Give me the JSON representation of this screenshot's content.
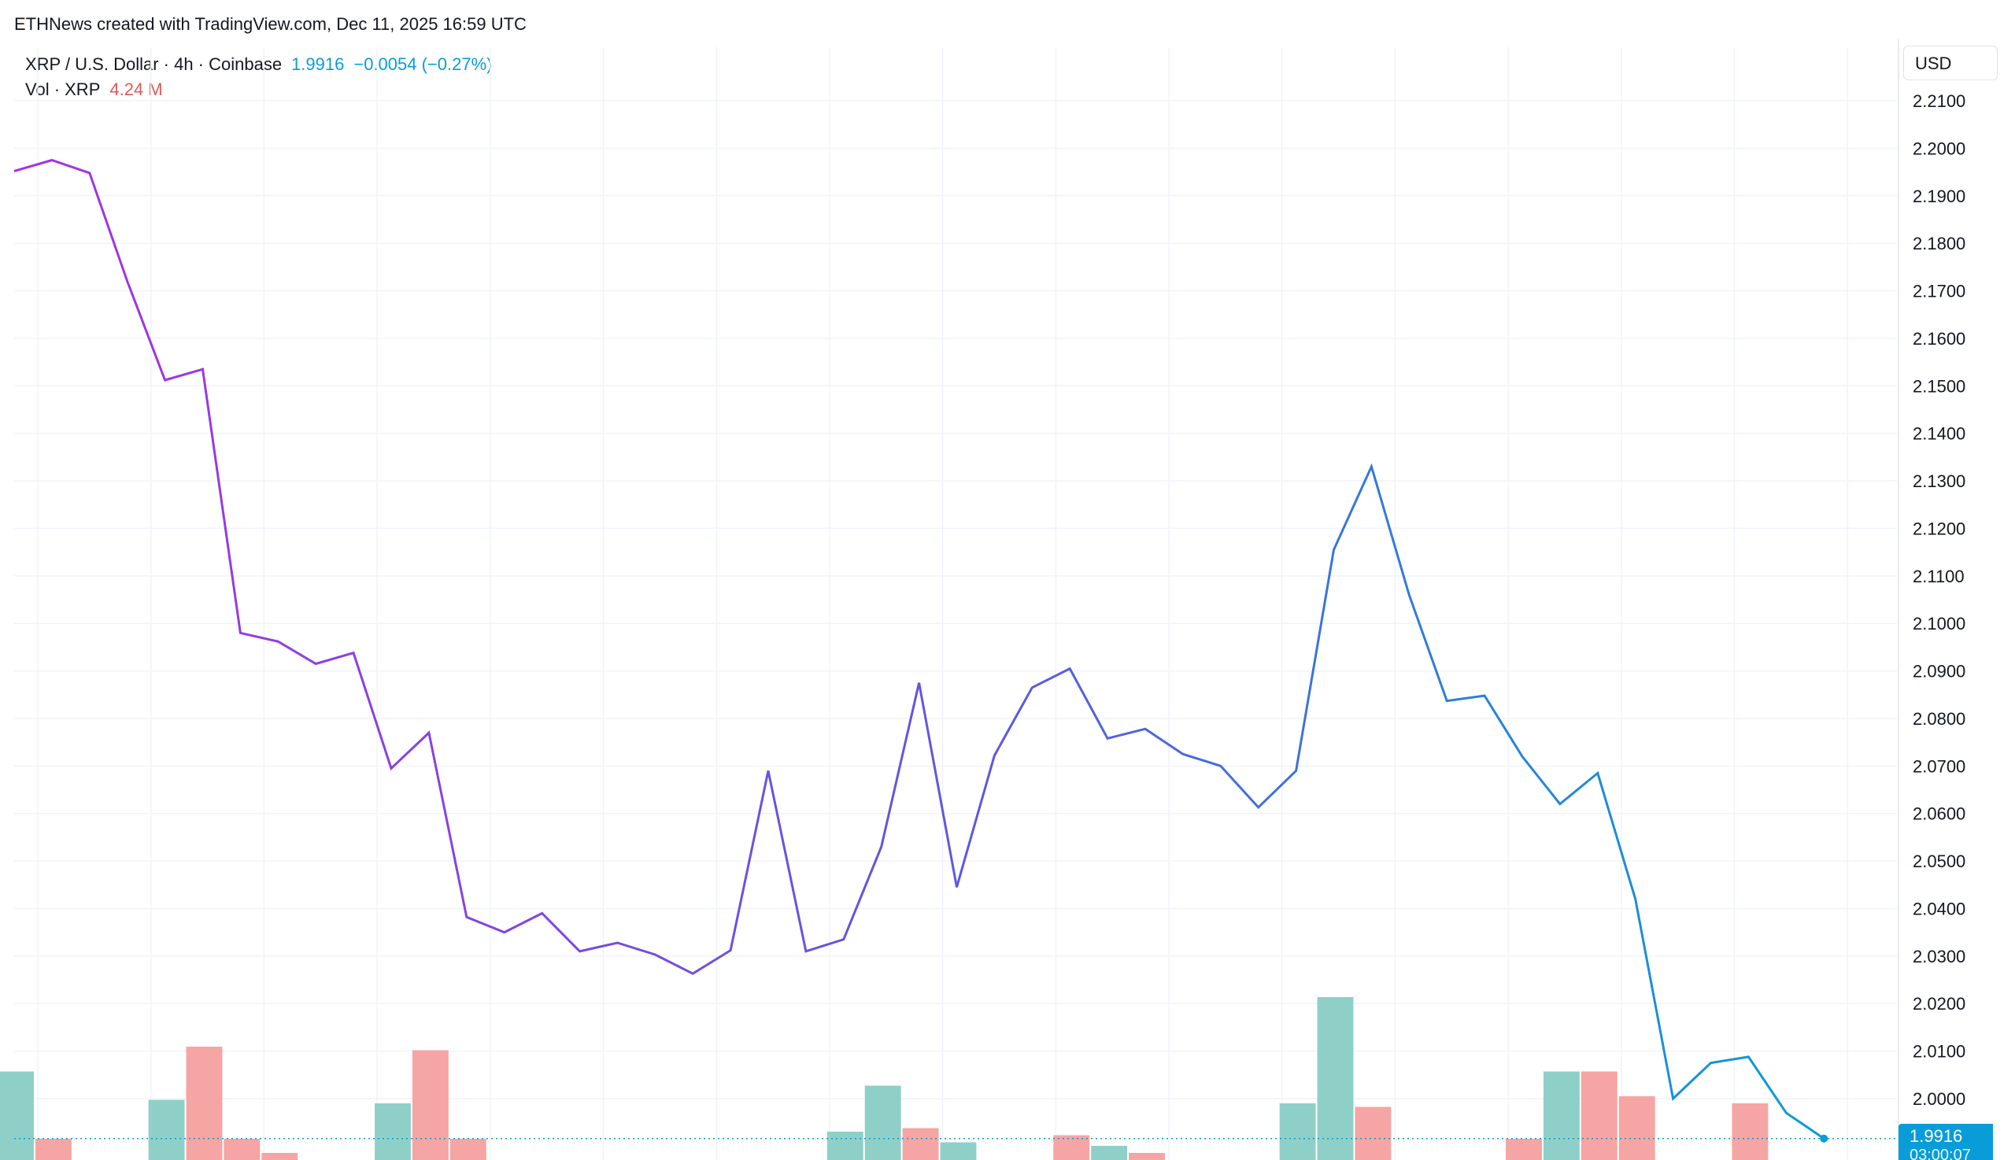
{
  "attribution": "ETHNews created with TradingView.com, Dec 11, 2025 16:59 UTC",
  "legend": {
    "symbol": "XRP / U.S. Dollar · 4h · Coinbase",
    "last": "1.9916",
    "change": "−0.0054 (−0.27%)",
    "vol_label": "Vol · XRP",
    "vol_value": "4.24 M"
  },
  "currency": "USD",
  "price_tag": {
    "price": "1.9916",
    "countdown": "03:00:07"
  },
  "colors": {
    "line_start": "#a531e8",
    "line_mid": "#5a5ae0",
    "line_end": "#089dd8",
    "vol_up": "#8ed0c8",
    "vol_down": "#f5a5a3",
    "grid": "#f0f3fa",
    "price_tag": "#089dd8"
  },
  "chart_data": {
    "type": "line",
    "y_axis": {
      "min": 1.992,
      "max": 2.21,
      "ticks": [
        "2.2100",
        "2.2000",
        "2.1900",
        "2.1800",
        "2.1700",
        "2.1600",
        "2.1500",
        "2.1400",
        "2.1300",
        "2.1200",
        "2.1100",
        "2.1000",
        "2.0900",
        "2.0800",
        "2.0700",
        "2.0600",
        "2.0500",
        "2.0400",
        "2.0300",
        "2.0200",
        "2.0100",
        "2.0000"
      ]
    },
    "grid": true,
    "series": [
      {
        "values": [
          2.1952,
          2.1975,
          2.1948,
          2.172,
          2.1512,
          2.1535,
          2.098,
          2.0962,
          2.0915,
          2.0938,
          2.0695,
          2.077,
          2.0382,
          2.035,
          2.039,
          2.031,
          2.0328,
          2.0303,
          2.0263,
          2.0312,
          2.069,
          2.031,
          2.0335,
          2.053,
          2.0875,
          2.0445,
          2.0722,
          2.0865,
          2.0905,
          2.0758,
          2.0778,
          2.0725,
          2.07,
          2.0613,
          2.069,
          2.1155,
          2.133,
          2.106,
          2.0837,
          2.0848,
          2.072,
          2.062,
          2.0685,
          2.042,
          2.0,
          2.0075,
          2.0088,
          1.997,
          1.9916
        ]
      }
    ],
    "volume": {
      "values": [
        2.5,
        0.6,
        0,
        0,
        1.7,
        3.2,
        0.6,
        0.2,
        0,
        0,
        1.6,
        3.1,
        0.6,
        0,
        0,
        0,
        0,
        0,
        0,
        0,
        0,
        0,
        0.8,
        2.1,
        0.9,
        0.5,
        0,
        0,
        0.7,
        0.4,
        0.2,
        0,
        0,
        0,
        1.6,
        4.6,
        1.5,
        0,
        0,
        0,
        0.6,
        2.5,
        2.5,
        1.8,
        0,
        0,
        1.6,
        0,
        0
      ],
      "direction": [
        "up",
        "down",
        "up",
        "up",
        "up",
        "down",
        "down",
        "down",
        "up",
        "up",
        "up",
        "down",
        "down",
        "up",
        "up",
        "up",
        "up",
        "up",
        "up",
        "up",
        "up",
        "up",
        "up",
        "up",
        "down",
        "up",
        "up",
        "up",
        "down",
        "up",
        "down",
        "up",
        "up",
        "up",
        "up",
        "up",
        "down",
        "up",
        "up",
        "up",
        "down",
        "up",
        "down",
        "down",
        "up",
        "up",
        "down",
        "up",
        "up"
      ]
    }
  }
}
